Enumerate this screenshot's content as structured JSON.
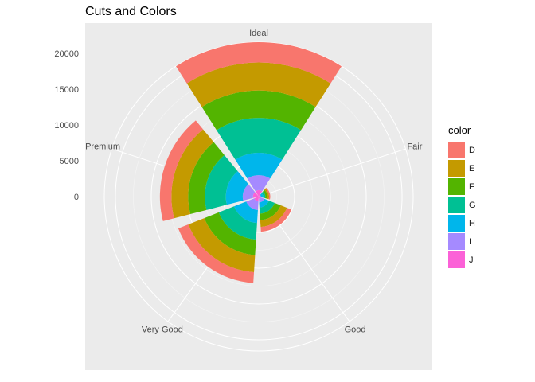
{
  "chart_data": {
    "type": "bar",
    "coord": "polar",
    "title": "Cuts and Colors",
    "xlabel": "",
    "ylabel": "",
    "categories": [
      "Fair",
      "Good",
      "Very Good",
      "Premium",
      "Ideal"
    ],
    "y_ticks": [
      0,
      5000,
      10000,
      15000,
      20000
    ],
    "ylim": [
      0,
      21551
    ],
    "legend": {
      "title": "color",
      "position": "right"
    },
    "series": [
      {
        "name": "D",
        "color": "#F8766D",
        "values": [
          163,
          662,
          1513,
          1603,
          2834
        ]
      },
      {
        "name": "E",
        "color": "#C49A00",
        "values": [
          224,
          933,
          2400,
          2337,
          3903
        ]
      },
      {
        "name": "F",
        "color": "#53B400",
        "values": [
          312,
          909,
          2164,
          2331,
          3826
        ]
      },
      {
        "name": "G",
        "color": "#00C094",
        "values": [
          314,
          871,
          2299,
          2924,
          4884
        ]
      },
      {
        "name": "H",
        "color": "#00B6EB",
        "values": [
          303,
          702,
          1824,
          2360,
          3115
        ]
      },
      {
        "name": "I",
        "color": "#A58AFF",
        "values": [
          175,
          522,
          1204,
          1428,
          2093
        ]
      },
      {
        "name": "J",
        "color": "#FB61D7",
        "values": [
          119,
          307,
          678,
          808,
          896
        ]
      }
    ]
  }
}
